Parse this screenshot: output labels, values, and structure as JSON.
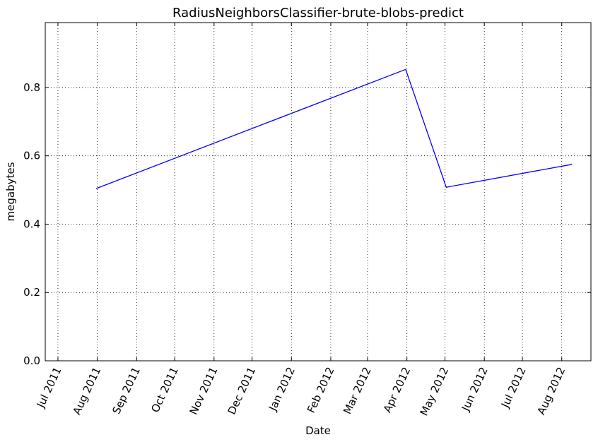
{
  "chart_data": {
    "type": "line",
    "title": "RadiusNeighborsClassifier-brute-blobs-predict",
    "xlabel": "Date",
    "ylabel": "megabytes",
    "x_axis_type": "date",
    "xlim": [
      "2011-06-21",
      "2012-08-24"
    ],
    "ylim": [
      0.0,
      0.99
    ],
    "grid": true,
    "line_color": "#0000ff",
    "x_ticks": [
      {
        "date": "2011-07-01",
        "label": "Jul 2011"
      },
      {
        "date": "2011-08-01",
        "label": "Aug 2011"
      },
      {
        "date": "2011-09-01",
        "label": "Sep 2011"
      },
      {
        "date": "2011-10-01",
        "label": "Oct 2011"
      },
      {
        "date": "2011-11-01",
        "label": "Nov 2011"
      },
      {
        "date": "2011-12-01",
        "label": "Dec 2011"
      },
      {
        "date": "2012-01-01",
        "label": "Jan 2012"
      },
      {
        "date": "2012-02-01",
        "label": "Feb 2012"
      },
      {
        "date": "2012-03-01",
        "label": "Mar 2012"
      },
      {
        "date": "2012-04-01",
        "label": "Apr 2012"
      },
      {
        "date": "2012-05-01",
        "label": "May 2012"
      },
      {
        "date": "2012-06-01",
        "label": "Jun 2012"
      },
      {
        "date": "2012-07-01",
        "label": "Jul 2012"
      },
      {
        "date": "2012-08-01",
        "label": "Aug 2012"
      }
    ],
    "y_ticks": [
      {
        "value": 0.0,
        "label": "0.0"
      },
      {
        "value": 0.2,
        "label": "0.2"
      },
      {
        "value": 0.4,
        "label": "0.4"
      },
      {
        "value": 0.6,
        "label": "0.6"
      },
      {
        "value": 0.8,
        "label": "0.8"
      }
    ],
    "series": [
      {
        "x": [
          "2011-07-31",
          "2012-03-31",
          "2012-05-02",
          "2012-08-09"
        ],
        "y": [
          0.504,
          0.853,
          0.508,
          0.575
        ]
      }
    ]
  }
}
